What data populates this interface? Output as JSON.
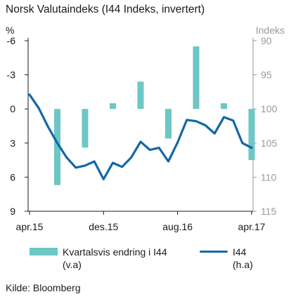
{
  "chart_data": {
    "type": "bar+line",
    "title": "Norsk Valutaindeks (I44 Indeks, invertert)",
    "left_axis": {
      "unit": "%",
      "ticks": [
        "-6",
        "-3",
        "0",
        "3",
        "6",
        "9"
      ],
      "range": [
        -6,
        9
      ],
      "inverted": true
    },
    "right_axis": {
      "unit": "Indeks",
      "ticks": [
        "90",
        "95",
        "100",
        "105",
        "110",
        "115"
      ],
      "range": [
        90,
        115
      ],
      "inverted": true
    },
    "x_ticks": [
      "apr.15",
      "des.15",
      "aug.16",
      "apr.17"
    ],
    "grid": false,
    "legend_position": "bottom",
    "series": [
      {
        "name": "Kvartalsvis endring i I44",
        "axis_note": "(v.a)",
        "kind": "bar",
        "color": "#6cc7c5",
        "x_months": [
          "2015-07",
          "2015-10",
          "2016-01",
          "2016-04",
          "2016-07",
          "2016-10",
          "2017-01",
          "2017-04"
        ],
        "values": [
          6.7,
          3.4,
          -0.5,
          -2.4,
          2.6,
          -5.5,
          -0.5,
          4.5
        ]
      },
      {
        "name": "I44",
        "axis_note": "(h.a)",
        "kind": "line",
        "color": "#1268a6",
        "x_months": [
          "2015-04",
          "2015-05",
          "2015-06",
          "2015-07",
          "2015-08",
          "2015-09",
          "2015-10",
          "2015-11",
          "2015-12",
          "2016-01",
          "2016-02",
          "2016-03",
          "2016-04",
          "2016-05",
          "2016-06",
          "2016-07",
          "2016-08",
          "2016-09",
          "2016-10",
          "2016-11",
          "2016-12",
          "2017-01",
          "2017-02",
          "2017-03",
          "2017-04"
        ],
        "values": [
          97.9,
          99.9,
          102.6,
          105.0,
          107.1,
          108.6,
          108.3,
          107.7,
          110.3,
          107.9,
          108.5,
          107.1,
          104.8,
          106.0,
          105.7,
          107.7,
          104.9,
          101.6,
          101.8,
          102.4,
          103.6,
          101.2,
          101.7,
          105.0,
          105.7
        ]
      }
    ]
  },
  "source": "Kilde: Bloomberg"
}
